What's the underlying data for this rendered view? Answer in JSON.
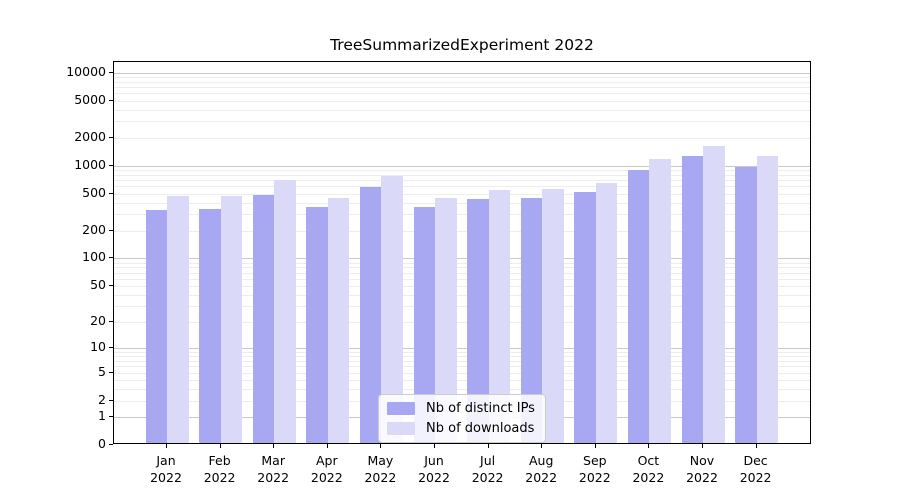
{
  "title": "TreeSummarizedExperiment 2022",
  "legend": {
    "items": [
      {
        "label": "Nb of distinct IPs",
        "color": "#a7a7f2"
      },
      {
        "label": "Nb of downloads",
        "color": "#dadaf8"
      }
    ]
  },
  "y_axis": {
    "tick_labels": [
      "0",
      "1",
      "2",
      "5",
      "10",
      "20",
      "50",
      "100",
      "200",
      "500",
      "1000",
      "2000",
      "5000",
      "10000"
    ]
  },
  "x_axis": {
    "months": [
      "Jan",
      "Feb",
      "Mar",
      "Apr",
      "May",
      "Jun",
      "Jul",
      "Aug",
      "Sep",
      "Oct",
      "Nov",
      "Dec"
    ],
    "year": "2022"
  },
  "colors": {
    "bar_distinct_ips": "#a7a7f2",
    "bar_downloads": "#dadaf8",
    "grid_major": "#c9c9c9",
    "grid_minor": "#ededed",
    "axis": "#000000",
    "background": "#ffffff"
  },
  "chart_data": {
    "type": "bar",
    "title": "TreeSummarizedExperiment 2022",
    "categories": [
      "Jan 2022",
      "Feb 2022",
      "Mar 2022",
      "Apr 2022",
      "May 2022",
      "Jun 2022",
      "Jul 2022",
      "Aug 2022",
      "Sep 2022",
      "Oct 2022",
      "Nov 2022",
      "Dec 2022"
    ],
    "series": [
      {
        "name": "Nb of distinct IPs",
        "color": "#a7a7f2",
        "values": [
          315,
          325,
          460,
          345,
          560,
          340,
          420,
          430,
          500,
          860,
          1200,
          920
        ]
      },
      {
        "name": "Nb of downloads",
        "color": "#dadaf8",
        "values": [
          445,
          455,
          665,
          430,
          730,
          425,
          520,
          540,
          620,
          1130,
          1550,
          1200
        ]
      }
    ],
    "xlabel": "",
    "ylabel": "",
    "yscale": "log1p",
    "ylim": [
      0,
      13000
    ],
    "yticks": [
      0,
      1,
      2,
      5,
      10,
      20,
      50,
      100,
      200,
      500,
      1000,
      2000,
      5000,
      10000
    ],
    "grid": true,
    "legend_position": "lower center"
  }
}
